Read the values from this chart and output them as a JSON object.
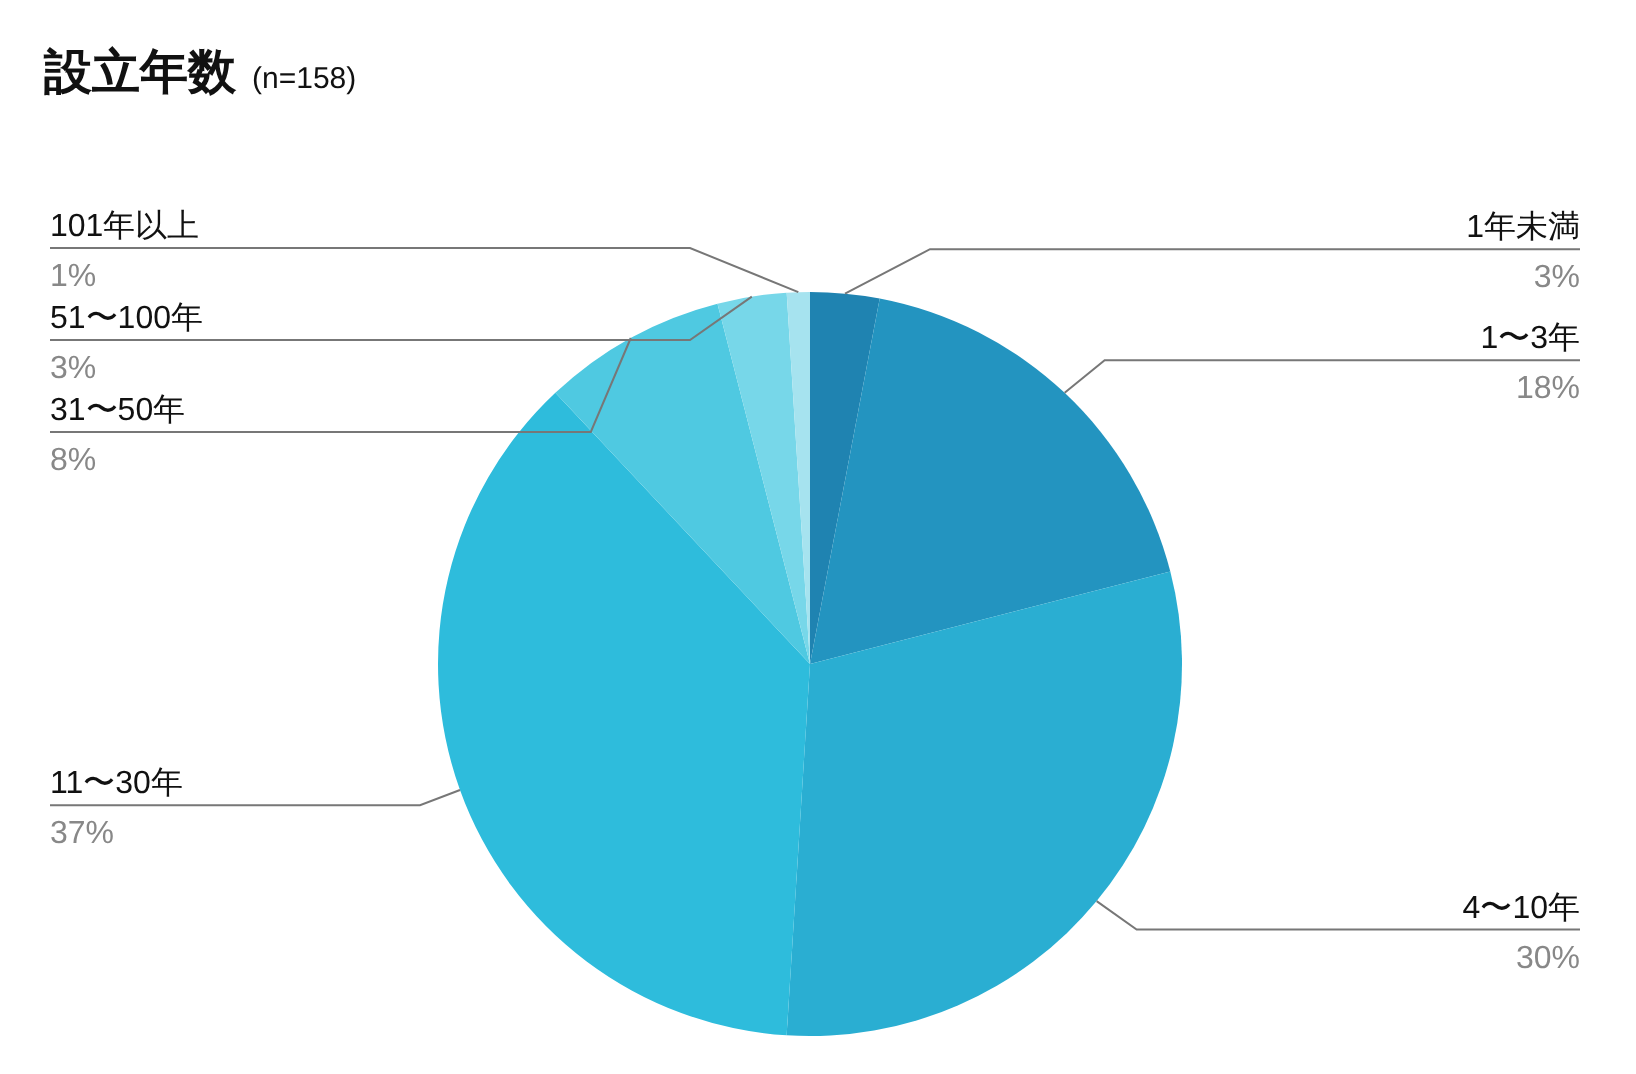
{
  "chart_data": {
    "type": "pie",
    "title": "設立年数",
    "subtitle": "(n=158)",
    "categories": [
      "1年未満",
      "1〜3年",
      "4〜10年",
      "11〜30年",
      "31〜50年",
      "51〜100年",
      "101年以上"
    ],
    "values": [
      3,
      18,
      30,
      37,
      8,
      3,
      1
    ],
    "value_labels": [
      "3%",
      "18%",
      "30%",
      "37%",
      "8%",
      "3%",
      "1%"
    ],
    "colors": [
      "#1f83b1",
      "#2394c0",
      "#2aaed2",
      "#2ebcdc",
      "#4fc9e1",
      "#77d7e9",
      "#a6e3ef"
    ]
  }
}
